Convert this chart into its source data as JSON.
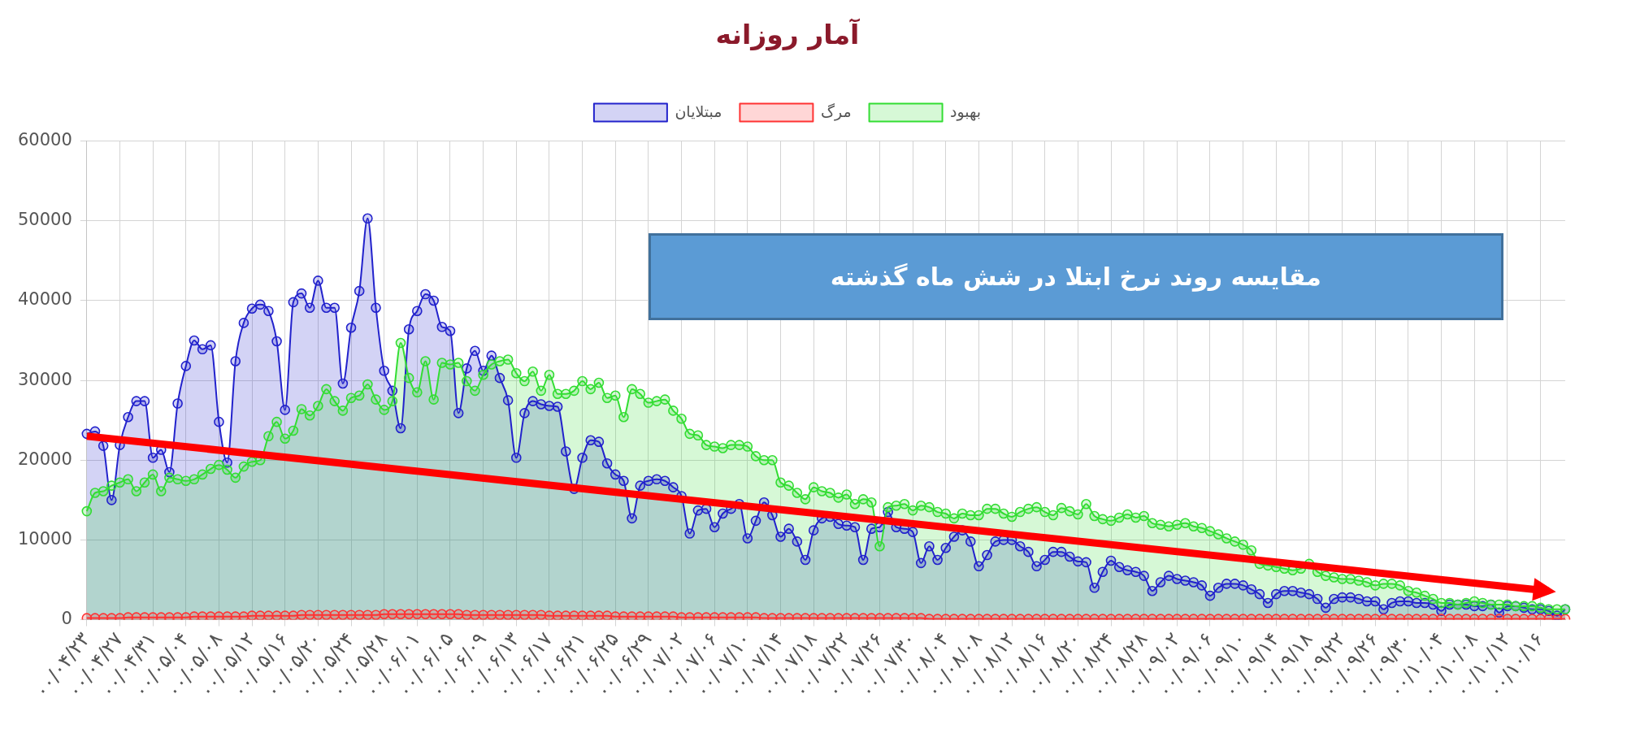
{
  "chart_data": {
    "type": "area",
    "title": "آمار روزانه",
    "categories": [
      "۰۰/۰۴/۲۳",
      null,
      null,
      null,
      "۰۰/۰۴/۲۷",
      null,
      null,
      null,
      "۰۰/۰۴/۳۱",
      null,
      null,
      null,
      "۰۰/۰۵/۰۴",
      null,
      null,
      null,
      "۰۰/۰۵/۰۸",
      null,
      null,
      null,
      "۰۰/۰۵/۱۲",
      null,
      null,
      null,
      "۰۰/۰۵/۱۶",
      null,
      null,
      null,
      "۰۰/۰۵/۲۰",
      null,
      null,
      null,
      "۰۰/۰۵/۲۴",
      null,
      null,
      null,
      "۰۰/۰۵/۲۸",
      null,
      null,
      null,
      "۰۰/۰۶/۰۱",
      null,
      null,
      null,
      "۰۰/۰۶/۰۵",
      null,
      null,
      null,
      "۰۰/۰۶/۰۹",
      null,
      null,
      null,
      "۰۰/۰۶/۱۳",
      null,
      null,
      null,
      "۰۰/۰۶/۱۷",
      null,
      null,
      null,
      "۰۰/۰۶/۲۱",
      null,
      null,
      null,
      "۰۰/۰۶/۲۵",
      null,
      null,
      null,
      "۰۰/۰۶/۲۹",
      null,
      null,
      null,
      "۰۰/۰۷/۰۲",
      null,
      null,
      null,
      "۰۰/۰۷/۰۶",
      null,
      null,
      null,
      "۰۰/۰۷/۱۰",
      null,
      null,
      null,
      "۰۰/۰۷/۱۴",
      null,
      null,
      null,
      "۰۰/۰۷/۱۸",
      null,
      null,
      null,
      "۰۰/۰۷/۲۲",
      null,
      null,
      null,
      "۰۰/۰۷/۲۶",
      null,
      null,
      null,
      "۰۰/۰۷/۳۰",
      null,
      null,
      null,
      "۰۰/۰۸/۰۴",
      null,
      null,
      null,
      "۰۰/۰۸/۰۸",
      null,
      null,
      null,
      "۰۰/۰۸/۱۲",
      null,
      null,
      null,
      "۰۰/۰۸/۱۶",
      null,
      null,
      null,
      "۰۰/۰۸/۲۰",
      null,
      null,
      null,
      "۰۰/۰۸/۲۴",
      null,
      null,
      null,
      "۰۰/۰۸/۲۸",
      null,
      null,
      null,
      "۰۰/۰۹/۰۲",
      null,
      null,
      null,
      "۰۰/۰۹/۰۶",
      null,
      null,
      null,
      "۰۰/۰۹/۱۰",
      null,
      null,
      null,
      "۰۰/۰۹/۱۴",
      null,
      null,
      null,
      "۰۰/۰۹/۱۸",
      null,
      null,
      null,
      "۰۰/۰۹/۲۲",
      null,
      null,
      null,
      "۰۰/۰۹/۲۶",
      null,
      null,
      null,
      "۰۰/۰۹/۳۰",
      null,
      null,
      null,
      "۰۰/۱۰/۰۴",
      null,
      null,
      null,
      "۰۰/۱۰/۰۸",
      null,
      null,
      null,
      "۰۰/۱۰/۱۲",
      null,
      null,
      null,
      "۰۰/۱۰/۱۶",
      null,
      null,
      null
    ],
    "series": [
      {
        "name": "مبتلایان",
        "type": "area",
        "color": "#2222cc",
        "values": [
          23300,
          23600,
          21800,
          15000,
          21900,
          25400,
          27400,
          27400,
          20300,
          21300,
          18500,
          27100,
          31800,
          35000,
          33900,
          34400,
          24800,
          19700,
          32400,
          37200,
          39000,
          39500,
          38700,
          34900,
          26300,
          39800,
          40900,
          39100,
          42500,
          39100,
          39100,
          29600,
          36600,
          41200,
          50300,
          39100,
          31200,
          28700,
          24000,
          36400,
          38700,
          40800,
          40000,
          36700,
          36200,
          25900,
          31500,
          33700,
          31200,
          33100,
          30300,
          27500,
          20300,
          25900,
          27400,
          27000,
          26800,
          26700,
          21100,
          16400,
          20300,
          22500,
          22300,
          19600,
          18200,
          17400,
          12700,
          16800,
          17400,
          17600,
          17400,
          16600,
          15500,
          10800,
          13700,
          13900,
          11600,
          13300,
          13900,
          14500,
          10200,
          12400,
          14700,
          13100,
          10400,
          11400,
          9800,
          7500,
          11200,
          12700,
          12900,
          12000,
          11800,
          11600,
          7500,
          11400,
          11600,
          13500,
          11600,
          11400,
          11000,
          7100,
          9200,
          7500,
          9000,
          10400,
          11200,
          9800,
          6700,
          8100,
          9800,
          10000,
          10000,
          9200,
          8500,
          6700,
          7500,
          8500,
          8500,
          7900,
          7300,
          7200,
          4000,
          6000,
          7400,
          6600,
          6200,
          6000,
          5500,
          3600,
          4700,
          5500,
          5100,
          4900,
          4700,
          4300,
          3000,
          4000,
          4500,
          4500,
          4300,
          3800,
          3200,
          2100,
          3200,
          3600,
          3600,
          3400,
          3200,
          2600,
          1500,
          2600,
          2800,
          2800,
          2600,
          2300,
          2300,
          1300,
          2100,
          2300,
          2300,
          2100,
          2100,
          1900,
          1100,
          1900,
          1900,
          1900,
          1700,
          1700,
          1900,
          900,
          1700,
          1700,
          1500,
          1300,
          1300,
          1100,
          500,
          1300
        ]
      },
      {
        "name": "مرگ",
        "type": "area",
        "color": "#ff3333",
        "values": [
          200,
          200,
          200,
          200,
          200,
          300,
          300,
          300,
          300,
          300,
          300,
          300,
          300,
          400,
          400,
          400,
          400,
          400,
          400,
          400,
          500,
          500,
          500,
          500,
          500,
          500,
          600,
          600,
          600,
          600,
          600,
          600,
          600,
          600,
          600,
          600,
          700,
          700,
          700,
          700,
          700,
          700,
          700,
          700,
          700,
          700,
          600,
          600,
          600,
          600,
          600,
          600,
          600,
          600,
          600,
          600,
          500,
          500,
          500,
          500,
          500,
          500,
          500,
          500,
          400,
          400,
          400,
          400,
          400,
          400,
          400,
          400,
          300,
          300,
          300,
          300,
          300,
          300,
          300,
          300,
          300,
          300,
          200,
          200,
          200,
          200,
          200,
          200,
          200,
          200,
          200,
          200,
          200,
          200,
          200,
          200,
          200,
          200,
          200,
          200,
          200,
          200,
          100,
          100,
          100,
          100,
          100,
          100,
          100,
          100,
          100,
          100,
          100,
          100,
          100,
          100,
          100,
          100,
          100,
          100,
          100,
          100,
          100,
          100,
          100,
          100,
          100,
          100,
          100,
          100,
          100,
          100,
          100,
          100,
          100,
          100,
          100,
          100,
          100,
          100,
          100,
          100,
          100,
          100,
          100,
          100,
          100,
          100,
          100,
          100,
          100,
          100,
          100,
          100,
          100,
          100,
          100,
          100,
          100,
          100,
          100,
          100,
          100,
          100,
          100,
          100,
          100,
          100,
          100,
          100,
          100,
          100,
          100,
          100,
          100,
          100,
          100,
          100,
          100,
          100
        ]
      },
      {
        "name": "بهبود",
        "type": "area",
        "color": "#33dd33",
        "values": [
          13600,
          15900,
          16100,
          16800,
          17200,
          17600,
          16100,
          17200,
          18200,
          16100,
          17800,
          17600,
          17400,
          17600,
          18200,
          18900,
          19400,
          18800,
          17800,
          19200,
          19800,
          20000,
          23000,
          24800,
          22700,
          23700,
          26400,
          25600,
          26800,
          28900,
          27400,
          26200,
          27800,
          28100,
          29500,
          27600,
          26300,
          27400,
          34700,
          30300,
          28500,
          32400,
          27600,
          32200,
          32000,
          32200,
          29900,
          28700,
          30700,
          32000,
          32400,
          32600,
          30900,
          29900,
          31100,
          28700,
          30700,
          28300,
          28300,
          28700,
          29900,
          28900,
          29700,
          27800,
          28100,
          25400,
          28900,
          28300,
          27200,
          27400,
          27600,
          26200,
          25200,
          23300,
          23100,
          21900,
          21700,
          21500,
          21900,
          21900,
          21700,
          20500,
          20000,
          20000,
          17200,
          16800,
          15900,
          15100,
          16600,
          16100,
          15900,
          15300,
          15700,
          14500,
          15100,
          14700,
          9200,
          14100,
          14300,
          14500,
          13700,
          14300,
          14100,
          13500,
          13300,
          12700,
          13300,
          13100,
          13100,
          13900,
          13900,
          13300,
          12900,
          13500,
          13900,
          14100,
          13500,
          13100,
          14000,
          13600,
          13200,
          14500,
          13000,
          12600,
          12400,
          12800,
          13200,
          12800,
          13000,
          12100,
          11900,
          11700,
          11900,
          12100,
          11700,
          11500,
          11100,
          10700,
          10200,
          9800,
          9400,
          8700,
          7000,
          6800,
          6600,
          6400,
          6200,
          6400,
          7000,
          6000,
          5500,
          5300,
          5100,
          5100,
          4900,
          4700,
          4300,
          4500,
          4500,
          4300,
          3600,
          3400,
          3000,
          2600,
          2100,
          2100,
          1900,
          2100,
          2300,
          2100,
          1900,
          1900,
          1900,
          1700,
          1700,
          1700,
          1500,
          1300,
          1300,
          1300
        ]
      },
      {
        "type": "line",
        "color": "#ff0000",
        "marker": "triangle",
        "values": [
          23000,
          null,
          null,
          null,
          null,
          null,
          null,
          null,
          null,
          null,
          null,
          null,
          null,
          null,
          null,
          null,
          null,
          null,
          null,
          null,
          null,
          null,
          null,
          null,
          null,
          null,
          null,
          null,
          null,
          null,
          null,
          null,
          null,
          null,
          null,
          null,
          null,
          null,
          null,
          null,
          null,
          null,
          null,
          null,
          null,
          null,
          null,
          null,
          null,
          null,
          null,
          null,
          null,
          null,
          null,
          null,
          null,
          null,
          null,
          null,
          null,
          null,
          null,
          null,
          null,
          null,
          null,
          null,
          null,
          null,
          null,
          null,
          null,
          null,
          null,
          null,
          null,
          null,
          null,
          null,
          null,
          null,
          null,
          null,
          null,
          null,
          null,
          null,
          null,
          null,
          null,
          null,
          null,
          null,
          null,
          null,
          null,
          null,
          null,
          null,
          null,
          null,
          null,
          null,
          null,
          null,
          null,
          null,
          null,
          null,
          null,
          null,
          null,
          null,
          null,
          null,
          null,
          null,
          null,
          null,
          null,
          null,
          null,
          null,
          null,
          null,
          null,
          null,
          null,
          null,
          null,
          null,
          null,
          null,
          null,
          null,
          null,
          null,
          null,
          null,
          null,
          null,
          null,
          null,
          null,
          null,
          null,
          null,
          null,
          null,
          null,
          null,
          null,
          null,
          null,
          null,
          null,
          null,
          null,
          null,
          null,
          null,
          null,
          null,
          null,
          null,
          null,
          null,
          null,
          null,
          null,
          null,
          null,
          null,
          null,
          null,
          null,
          3600,
          null,
          null
        ]
      }
    ],
    "ylim": [
      0,
      60000
    ],
    "yticks": [
      0,
      10000,
      20000,
      30000,
      40000,
      50000,
      60000
    ],
    "grid": true,
    "legend": "top",
    "marker": "circle",
    "line_style": "solid",
    "annotations": [
      "مقایسه روند نرخ ابتلا در شش ماه گذشته"
    ]
  }
}
